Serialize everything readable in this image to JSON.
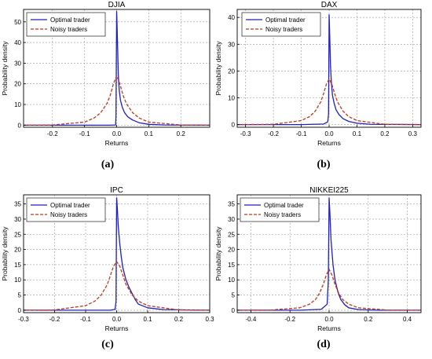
{
  "figure": {
    "panels": [
      {
        "caption": "(a)"
      },
      {
        "caption": "(b)"
      },
      {
        "caption": "(c)"
      },
      {
        "caption": "(d)"
      }
    ]
  },
  "chart_data": [
    {
      "type": "line",
      "title": "DJIA",
      "xlabel": "Returns",
      "ylabel": "Probability density",
      "xlim": [
        -0.29,
        0.29
      ],
      "ylim": [
        -1,
        56
      ],
      "xticks": [
        -0.2,
        -0.1,
        0.0,
        0.1,
        0.2
      ],
      "xtick_labels": [
        "-0.2",
        "-0.1",
        "0.0",
        "0.1",
        "0.2"
      ],
      "yticks": [
        0,
        10,
        20,
        30,
        40,
        50
      ],
      "ytick_labels": [
        "0",
        "10",
        "20",
        "30",
        "40",
        "50"
      ],
      "grid": true,
      "legend": "top-left",
      "series": [
        {
          "name": "Optimal trader",
          "color": "#1f1fbf",
          "style": "solid",
          "x": [
            -0.29,
            -0.1,
            -0.02,
            -0.003,
            -0.002,
            -0.001,
            0.0,
            0.001,
            0.003,
            0.005,
            0.008,
            0.012,
            0.018,
            0.025,
            0.035,
            0.05,
            0.07,
            0.1,
            0.15,
            0.29
          ],
          "y": [
            0.0,
            0.0,
            0.0,
            0.1,
            5.0,
            30.0,
            55.0,
            50.0,
            38.0,
            25.0,
            17.0,
            12.0,
            8.5,
            6.0,
            4.0,
            2.5,
            1.2,
            0.4,
            0.1,
            0.0
          ]
        },
        {
          "name": "Noisy traders",
          "color": "#c0391b",
          "style": "dashed",
          "x": [
            -0.29,
            -0.2,
            -0.1,
            -0.07,
            -0.05,
            -0.03,
            -0.02,
            -0.01,
            0.0,
            0.01,
            0.02,
            0.03,
            0.05,
            0.07,
            0.1,
            0.2,
            0.29
          ],
          "y": [
            0.0,
            0.1,
            1.5,
            3.5,
            6.0,
            10.5,
            14.5,
            20.0,
            24.0,
            20.0,
            14.5,
            10.5,
            6.0,
            3.5,
            1.5,
            0.1,
            0.0
          ]
        }
      ]
    },
    {
      "type": "line",
      "title": "DAX",
      "xlabel": "Returns",
      "ylabel": "Probability density",
      "xlim": [
        -0.33,
        0.33
      ],
      "ylim": [
        -1,
        43
      ],
      "xticks": [
        -0.3,
        -0.2,
        -0.1,
        0.0,
        0.1,
        0.2,
        0.3
      ],
      "xtick_labels": [
        "-0.3",
        "-0.2",
        "-0.1",
        "0.0",
        "0.1",
        "0.2",
        "0.3"
      ],
      "yticks": [
        0,
        10,
        20,
        30,
        40
      ],
      "ytick_labels": [
        "0",
        "10",
        "20",
        "30",
        "40"
      ],
      "grid": true,
      "legend": "top-right",
      "series": [
        {
          "name": "Optimal trader",
          "color": "#1f1fbf",
          "style": "solid",
          "x": [
            -0.33,
            -0.1,
            -0.02,
            -0.005,
            -0.002,
            -0.001,
            0.0,
            0.001,
            0.003,
            0.005,
            0.008,
            0.012,
            0.018,
            0.025,
            0.035,
            0.05,
            0.07,
            0.1,
            0.15,
            0.33
          ],
          "y": [
            0.0,
            0.0,
            0.2,
            1.0,
            4.0,
            22.0,
            41.0,
            38.0,
            30.0,
            22.0,
            16.0,
            11.0,
            8.0,
            5.5,
            3.8,
            2.2,
            1.2,
            0.5,
            0.1,
            0.0
          ]
        },
        {
          "name": "Noisy traders",
          "color": "#c0391b",
          "style": "dashed",
          "x": [
            -0.33,
            -0.2,
            -0.1,
            -0.07,
            -0.05,
            -0.03,
            -0.02,
            -0.01,
            0.0,
            0.01,
            0.02,
            0.03,
            0.05,
            0.07,
            0.1,
            0.2,
            0.33
          ],
          "y": [
            0.0,
            0.1,
            1.5,
            3.0,
            5.0,
            8.5,
            11.5,
            15.0,
            17.0,
            15.0,
            11.5,
            8.5,
            5.0,
            3.0,
            1.5,
            0.1,
            0.0
          ]
        }
      ]
    },
    {
      "type": "line",
      "title": "IPC",
      "xlabel": "Returns",
      "ylabel": "Probability density",
      "xlim": [
        -0.3,
        0.3
      ],
      "ylim": [
        -0.8,
        38
      ],
      "xticks": [
        -0.3,
        -0.2,
        -0.1,
        0.0,
        0.1,
        0.2,
        0.3
      ],
      "xtick_labels": [
        "-0.3",
        "-0.2",
        "-0.1",
        "0.0",
        "0.1",
        "0.2",
        "0.3"
      ],
      "yticks": [
        0,
        5,
        10,
        15,
        20,
        25,
        30,
        35
      ],
      "ytick_labels": [
        "0",
        "5",
        "10",
        "15",
        "20",
        "25",
        "30",
        "35"
      ],
      "grid": true,
      "legend": "top-left",
      "series": [
        {
          "name": "Optimal trader",
          "color": "#1f1fbf",
          "style": "solid",
          "x": [
            -0.3,
            -0.1,
            -0.02,
            -0.005,
            -0.002,
            0.0,
            0.002,
            0.005,
            0.01,
            0.015,
            0.02,
            0.03,
            0.04,
            0.05,
            0.06,
            0.07,
            0.1,
            0.15,
            0.3
          ],
          "y": [
            0.0,
            0.0,
            0.0,
            0.3,
            3.0,
            37.0,
            34.0,
            28.0,
            22.0,
            17.5,
            14.0,
            10.0,
            7.5,
            5.5,
            3.5,
            2.0,
            0.8,
            0.2,
            0.0
          ]
        },
        {
          "name": "Noisy traders",
          "color": "#c0391b",
          "style": "dashed",
          "x": [
            -0.3,
            -0.2,
            -0.1,
            -0.07,
            -0.05,
            -0.03,
            -0.02,
            -0.01,
            0.0,
            0.01,
            0.02,
            0.03,
            0.05,
            0.07,
            0.1,
            0.2,
            0.3
          ],
          "y": [
            0.0,
            0.1,
            1.5,
            3.0,
            5.0,
            8.5,
            11.5,
            14.5,
            16.0,
            14.5,
            11.5,
            8.5,
            5.0,
            3.0,
            1.5,
            0.1,
            0.0
          ]
        }
      ]
    },
    {
      "type": "line",
      "title": "NIKKEI225",
      "xlabel": "Returns",
      "ylabel": "Probability density",
      "xlim": [
        -0.47,
        0.47
      ],
      "ylim": [
        -0.8,
        38
      ],
      "xticks": [
        -0.4,
        -0.2,
        0.0,
        0.2,
        0.4
      ],
      "xtick_labels": [
        "-0.4",
        "-0.2",
        "0.0",
        "0.2",
        "0.4"
      ],
      "yticks": [
        0,
        5,
        10,
        15,
        20,
        25,
        30,
        35
      ],
      "ytick_labels": [
        "0",
        "5",
        "10",
        "15",
        "20",
        "25",
        "30",
        "35"
      ],
      "grid": true,
      "legend": "top-left",
      "series": [
        {
          "name": "Optimal trader",
          "color": "#1f1fbf",
          "style": "solid",
          "x": [
            -0.47,
            -0.15,
            -0.04,
            -0.01,
            -0.004,
            0.0,
            0.004,
            0.01,
            0.02,
            0.03,
            0.045,
            0.06,
            0.08,
            0.1,
            0.15,
            0.25,
            0.47
          ],
          "y": [
            0.0,
            0.0,
            0.3,
            2.0,
            10.0,
            37.0,
            32.0,
            23.0,
            15.0,
            10.0,
            6.0,
            3.5,
            1.8,
            0.8,
            0.2,
            0.0,
            0.0
          ]
        },
        {
          "name": "Noisy traders",
          "color": "#c0391b",
          "style": "dashed",
          "x": [
            -0.47,
            -0.3,
            -0.15,
            -0.1,
            -0.07,
            -0.05,
            -0.03,
            -0.015,
            0.0,
            0.015,
            0.03,
            0.05,
            0.07,
            0.1,
            0.15,
            0.3,
            0.47
          ],
          "y": [
            0.0,
            0.05,
            0.8,
            2.0,
            3.5,
            5.5,
            8.5,
            11.5,
            13.5,
            11.5,
            8.5,
            5.5,
            3.5,
            2.0,
            0.8,
            0.05,
            0.0
          ]
        }
      ]
    }
  ]
}
